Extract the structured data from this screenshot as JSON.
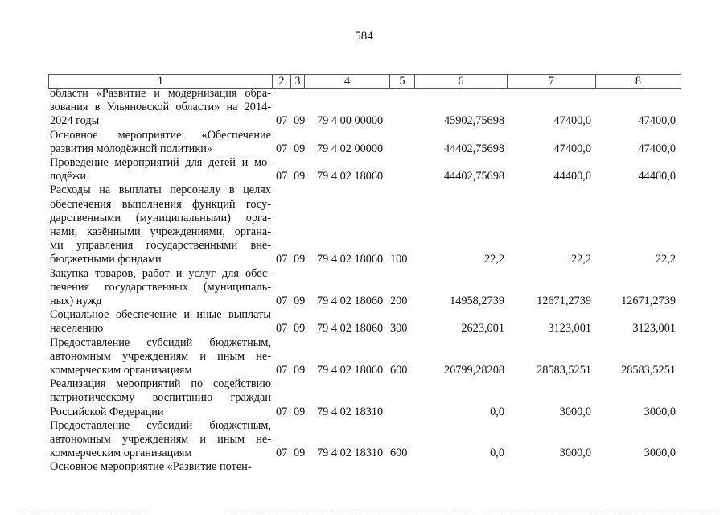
{
  "page_number": "584",
  "header": [
    "1",
    "2",
    "3",
    "4",
    "5",
    "6",
    "7",
    "8"
  ],
  "rows": [
    {
      "lines": [
        "области «Развитие и модернизация обра-",
        "зования в Ульяновской области» на 2014-",
        "2024 годы"
      ],
      "c2": "07",
      "c3": "09",
      "c4": "79 4 00 00000",
      "c5": "",
      "c6": "45902,75698",
      "c7": "47400,0",
      "c8": "47400,0"
    },
    {
      "lines": [
        "Основное мероприятие «Обеспечение",
        "развития молодёжной политики»"
      ],
      "c2": "07",
      "c3": "09",
      "c4": "79 4 02 00000",
      "c5": "",
      "c6": "44402,75698",
      "c7": "47400,0",
      "c8": "47400,0"
    },
    {
      "lines": [
        "Проведение мероприятий для детей и мо-",
        "лодёжи"
      ],
      "c2": "07",
      "c3": "09",
      "c4": "79 4 02 18060",
      "c5": "",
      "c6": "44402,75698",
      "c7": "44400,0",
      "c8": "44400,0"
    },
    {
      "lines": [
        "Расходы на выплаты персоналу в целях",
        "обеспечения выполнения функций госу-",
        "дарственными (муниципальными) орга-",
        "нами, казёнными учреждениями, органа-",
        "ми управления государственными вне-",
        "бюджетными фондами"
      ],
      "c2": "07",
      "c3": "09",
      "c4": "79 4 02 18060",
      "c5": "100",
      "c6": "22,2",
      "c7": "22,2",
      "c8": "22,2"
    },
    {
      "lines": [
        "Закупка товаров, работ и услуг для обес-",
        "печения государственных (муниципаль-",
        "ных) нужд"
      ],
      "c2": "07",
      "c3": "09",
      "c4": "79 4 02 18060",
      "c5": "200",
      "c6": "14958,2739",
      "c7": "12671,2739",
      "c8": "12671,2739"
    },
    {
      "lines": [
        "Социальное обеспечение и иные выплаты",
        "населению"
      ],
      "c2": "07",
      "c3": "09",
      "c4": "79 4 02 18060",
      "c5": "300",
      "c6": "2623,001",
      "c7": "3123,001",
      "c8": "3123,001"
    },
    {
      "lines": [
        "Предоставление субсидий бюджетным,",
        "автономным учреждениям и иным не-",
        "коммерческим организациям"
      ],
      "c2": "07",
      "c3": "09",
      "c4": "79 4 02 18060",
      "c5": "600",
      "c6": "26799,28208",
      "c7": "28583,5251",
      "c8": "28583,5251"
    },
    {
      "lines": [
        "Реализация мероприятий по содействию",
        "патриотическому воспитанию граждан",
        "Российской Федерации"
      ],
      "c2": "07",
      "c3": "09",
      "c4": "79 4 02 18310",
      "c5": "",
      "c6": "0,0",
      "c7": "3000,0",
      "c8": "3000,0"
    },
    {
      "lines": [
        "Предоставление субсидий бюджетным,",
        "автономным учреждениям и иным не-",
        "коммерческим организациям"
      ],
      "c2": "07",
      "c3": "09",
      "c4": "79 4 02 18310",
      "c5": "600",
      "c6": "0,0",
      "c7": "3000,0",
      "c8": "3000,0"
    },
    {
      "lines": [
        "Основное мероприятие «Развитие потен-"
      ],
      "c2": "",
      "c3": "",
      "c4": "",
      "c5": "",
      "c6": "",
      "c7": "",
      "c8": ""
    }
  ]
}
